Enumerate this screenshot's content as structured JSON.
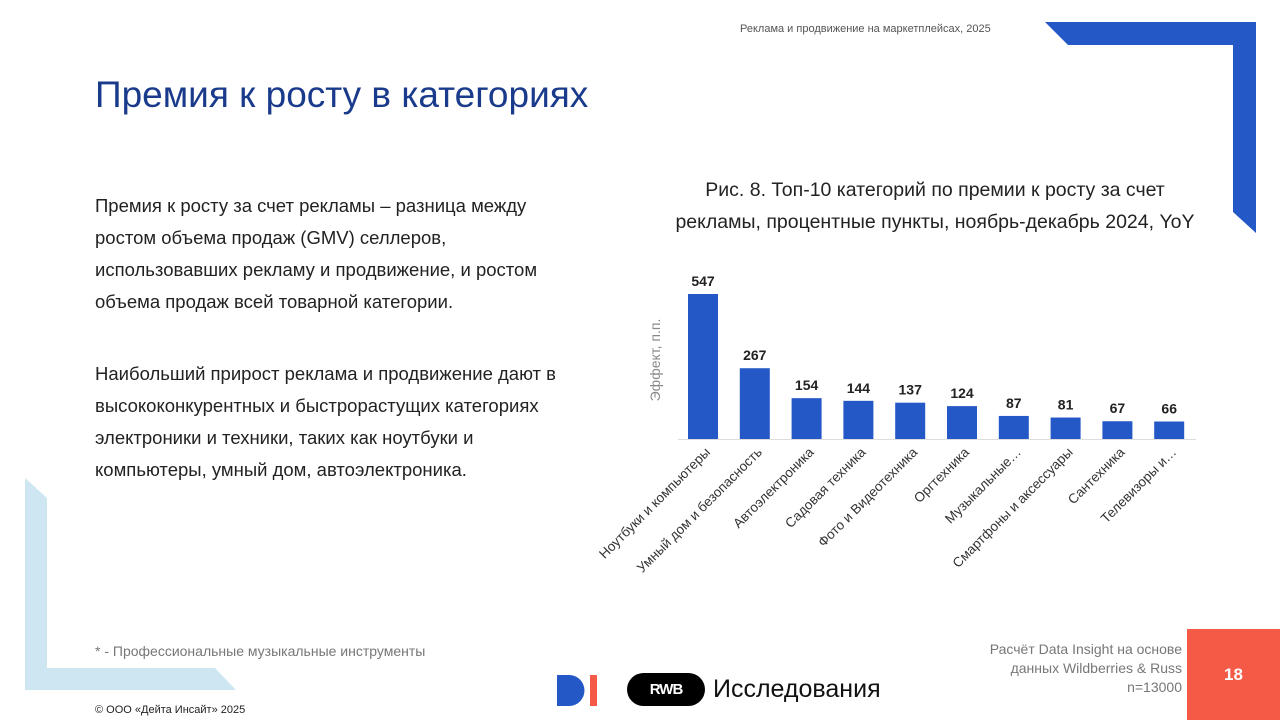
{
  "header": {
    "subtitle": "Реклама и продвижение на маркетплейсах, 2025"
  },
  "title": "Премия к росту в категориях",
  "body": {
    "paragraphs": [
      "Премия к росту за счет рекламы – разница между ростом объема продаж (GMV) селлеров, использовавших рекламу и продвижение, и ростом объема продаж всей товарной категории.",
      "Наибольший прирост реклама и продвижение дают в высококонкурентных и быстрорастущих категориях электроники и техники, таких как ноутбуки и компьютеры, умный дом, автоэлектроника."
    ]
  },
  "chart_data": {
    "type": "bar",
    "title": "Рис. 8. Топ-10 категорий по премии к росту за счет рекламы, процентные пункты, ноябрь-декабрь 2024, YoY",
    "xlabel": "",
    "ylabel": "Эффект, п.п.",
    "categories": [
      "Ноутбуки и компьютеры",
      "Умный дом и безопасность",
      "Автоэлектроника",
      "Садовая техника",
      "Фото и Видеотехника",
      "Оргтехника",
      "Музыкальные…",
      "Смартфоны и аксессуары",
      "Сантехника",
      "Телевизоры и…"
    ],
    "values": [
      547,
      267,
      154,
      144,
      137,
      124,
      87,
      81,
      67,
      66
    ],
    "ylim": [
      0,
      547
    ],
    "grid": false,
    "bar_color": "#2458c6"
  },
  "footnote": "* - Профессиональные музыкальные инструменты",
  "copyright": "© ООО «Дейта Инсайт» 2025",
  "source": {
    "lines": [
      "Расчёт Data Insight на основе",
      "данных Wildberries & Russ",
      "n=13000"
    ]
  },
  "page_number": "18",
  "logos": {
    "rwb": "RWB",
    "research": "Исследования"
  },
  "colors": {
    "brand_blue": "#2458c6",
    "title_blue": "#1a3a8c",
    "accent_red": "#f45a46",
    "light_blue": "#cde6f2"
  }
}
